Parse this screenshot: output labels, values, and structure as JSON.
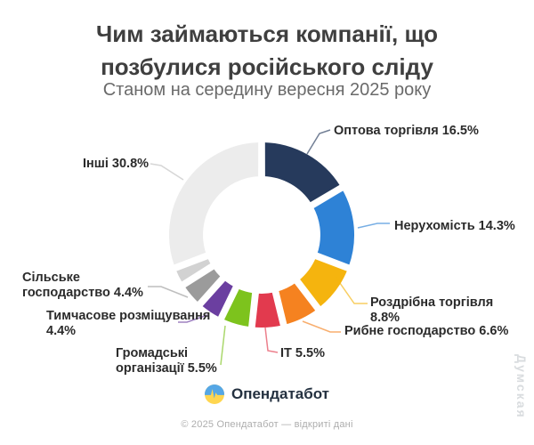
{
  "header": {
    "title_lines": [
      "Чим займаються компанії, що",
      "позбулися російського сліду"
    ],
    "subtitle": "Станом на середину вересня 2025 року"
  },
  "chart_data": {
    "type": "pie",
    "variant": "donut",
    "title": "Чим займаються компанії, що позбулися російського сліду",
    "subtitle": "Станом на середину вересня 2025 року",
    "unit": "%",
    "start_angle_deg": 0,
    "direction": "clockwise",
    "segments": [
      {
        "label": "Оптова торгівля",
        "value": 16.5,
        "color": "#263a5c"
      },
      {
        "label": "Нерухомість",
        "value": 14.3,
        "color": "#2e82d6"
      },
      {
        "label": "Роздрібна торгівля",
        "value": 8.8,
        "color": "#f5b40e"
      },
      {
        "label": "Рибне господарство",
        "value": 6.6,
        "color": "#f58220"
      },
      {
        "label": "IT",
        "value": 5.5,
        "color": "#e23a4e"
      },
      {
        "label": "Громадські організації",
        "value": 5.5,
        "color": "#7dc31d"
      },
      {
        "label": "Тимчасове розміщування",
        "value": 4.4,
        "color": "#6b3fa0"
      },
      {
        "label": "Сільське господарство",
        "value": 4.4,
        "color": "#9b9b9b"
      },
      {
        "label": "",
        "value": 3.2,
        "color": "#d2d2d2"
      },
      {
        "label": "Інші",
        "value": 30.8,
        "color": "#ececec"
      }
    ]
  },
  "footer": {
    "brand": "Опендатабот",
    "brand_logo": "opendatabot-pulse-flag-icon",
    "copyright": "© 2025 Опендатабот — відкриті дані"
  },
  "watermark": "Думская"
}
